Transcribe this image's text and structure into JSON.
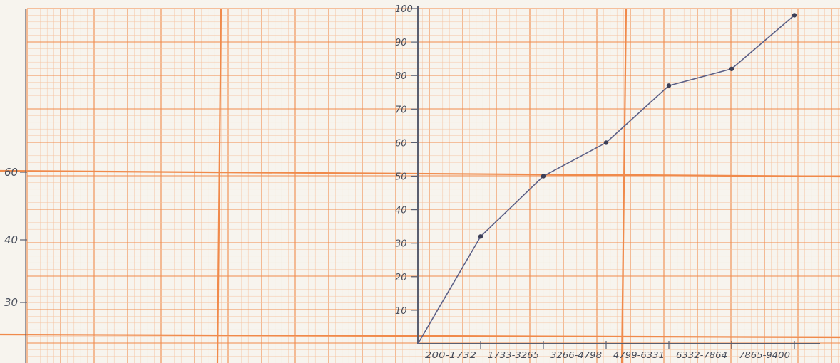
{
  "chart_data": {
    "type": "line",
    "title": "",
    "xlabel": "",
    "ylabel": "",
    "categories": [
      "",
      "200-1732",
      "1733-3265",
      "3266-4798",
      "4799-6331",
      "6332-7864",
      "7865-9400"
    ],
    "values": [
      0,
      32,
      50,
      60,
      77,
      82,
      98
    ],
    "ylim": [
      0,
      100
    ],
    "y_ticks": [
      10,
      20,
      30,
      40,
      50,
      60,
      70,
      80,
      90,
      100
    ],
    "y_tick_labels": [
      "10",
      "20",
      "30",
      "40",
      "50",
      "60",
      "70",
      "80",
      "90",
      "100"
    ],
    "left_axis_labels": [
      "60",
      "40",
      "30"
    ],
    "grid": true,
    "colors": {
      "line": "#5b5f86",
      "point": "#3c3f57",
      "grid_major": "#f08a4b",
      "grid_minor": "#f6c3a0",
      "paper": "#f7f4ee",
      "axis": "#5a5f70"
    }
  }
}
